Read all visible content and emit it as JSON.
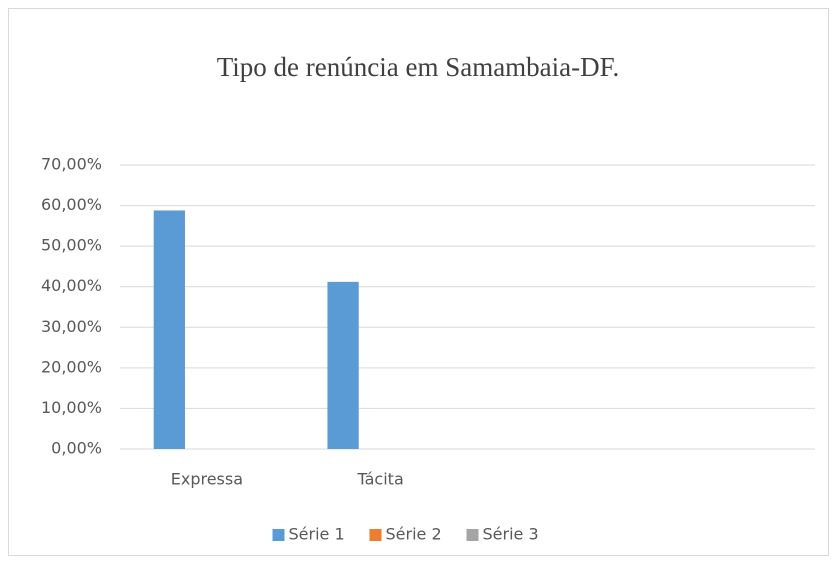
{
  "chart_data": {
    "type": "bar",
    "title": "Tipo de renúncia em Samambaia-DF.",
    "categories": [
      "Expressa",
      "Tácita",
      null,
      null
    ],
    "series": [
      {
        "name": "Série 1",
        "color": "#5b9bd5",
        "values": [
          58.8,
          41.2,
          null,
          null
        ]
      },
      {
        "name": "Série 2",
        "color": "#ed7d31",
        "values": [
          null,
          null,
          null,
          null
        ]
      },
      {
        "name": "Série 3",
        "color": "#a5a5a5",
        "values": [
          null,
          null,
          null,
          null
        ]
      }
    ],
    "ylim": [
      0,
      70
    ],
    "yticks": [
      {
        "value": 0,
        "label": "0,00%"
      },
      {
        "value": 10,
        "label": "10,00%"
      },
      {
        "value": 20,
        "label": "20,00%"
      },
      {
        "value": 30,
        "label": "30,00%"
      },
      {
        "value": 40,
        "label": "40,00%"
      },
      {
        "value": 50,
        "label": "50,00%"
      },
      {
        "value": 60,
        "label": "60,00%"
      },
      {
        "value": 70,
        "label": "70,00%"
      }
    ],
    "grid": true,
    "legend": "bottom"
  }
}
